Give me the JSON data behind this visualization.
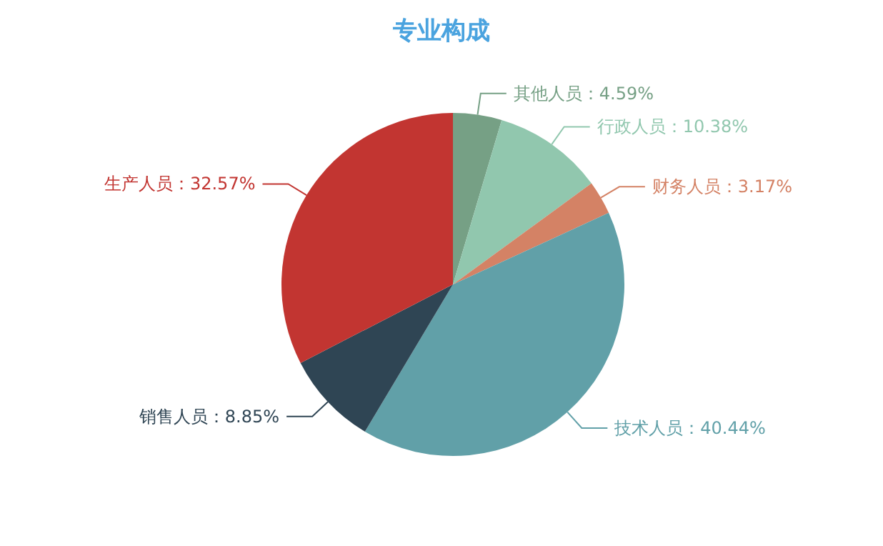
{
  "chart_data": {
    "type": "pie",
    "title": "专业构成",
    "categories": [
      "其他人员",
      "行政人员",
      "财务人员",
      "技术人员",
      "销售人员",
      "生产人员"
    ],
    "values": [
      4.59,
      10.38,
      3.17,
      40.44,
      8.85,
      32.57
    ],
    "value_labels": [
      "4.59%",
      "10.38%",
      "3.17%",
      "40.44%",
      "8.85%",
      "32.57%"
    ],
    "colors": [
      "#76a085",
      "#91c7ae",
      "#d48265",
      "#61a0a8",
      "#2f4554",
      "#c23531"
    ]
  }
}
